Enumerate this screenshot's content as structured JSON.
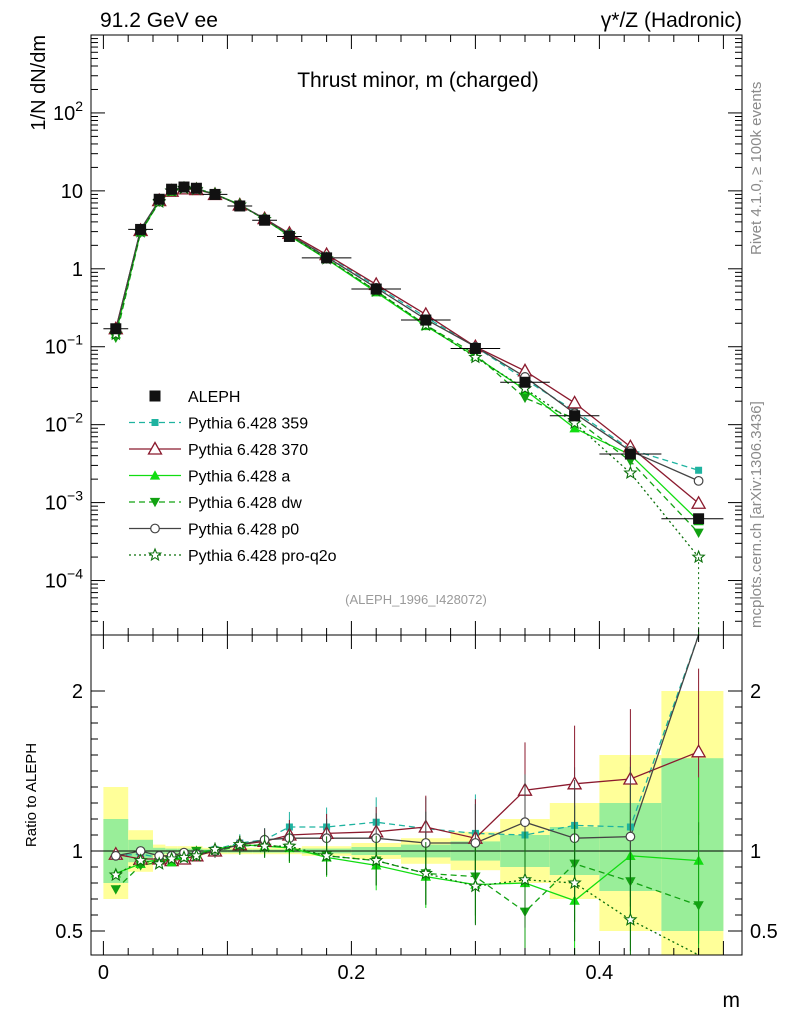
{
  "header": {
    "left": "91.2 GeV ee",
    "right": "γ*/Z (Hadronic)"
  },
  "side_notes": {
    "rivet": "Rivet 4.1.0, ≥ 100k events",
    "mcplots": "mcplots.cern.ch [arXiv:1306.3436]"
  },
  "chart_data": [
    {
      "type": "line",
      "scale": "log",
      "title": "Thrust minor, m (charged)",
      "ylabel": "1/N  dN/dm",
      "ylim": [
        2e-05,
        1000
      ],
      "xlim": [
        -0.01,
        0.515
      ],
      "y_ticks": [
        {
          "value": 0.0001,
          "mantissa": "10",
          "exp": "−4"
        },
        {
          "value": 0.001,
          "mantissa": "10",
          "exp": "−3"
        },
        {
          "value": 0.01,
          "mantissa": "10",
          "exp": "−2"
        },
        {
          "value": 0.1,
          "mantissa": "10",
          "exp": "−1"
        },
        {
          "value": 1,
          "label": "1"
        },
        {
          "value": 10,
          "label": "10"
        },
        {
          "value": 100,
          "mantissa": "10",
          "exp": "2"
        }
      ],
      "watermark": "(ALEPH_1996_I428072)",
      "x": [
        0.01,
        0.03,
        0.045,
        0.055,
        0.065,
        0.075,
        0.09,
        0.11,
        0.13,
        0.15,
        0.18,
        0.22,
        0.26,
        0.3,
        0.34,
        0.38,
        0.425,
        0.48
      ],
      "bins": [
        [
          0.0,
          0.02
        ],
        [
          0.02,
          0.04
        ],
        [
          0.04,
          0.05
        ],
        [
          0.05,
          0.06
        ],
        [
          0.06,
          0.07
        ],
        [
          0.07,
          0.08
        ],
        [
          0.08,
          0.1
        ],
        [
          0.1,
          0.12
        ],
        [
          0.12,
          0.14
        ],
        [
          0.14,
          0.16
        ],
        [
          0.16,
          0.2
        ],
        [
          0.2,
          0.24
        ],
        [
          0.24,
          0.28
        ],
        [
          0.28,
          0.32
        ],
        [
          0.32,
          0.36
        ],
        [
          0.36,
          0.4
        ],
        [
          0.4,
          0.45
        ],
        [
          0.45,
          0.5
        ]
      ],
      "data": {
        "name": "ALEPH",
        "values": [
          0.17,
          3.2,
          7.8,
          10.5,
          11.2,
          10.8,
          9.0,
          6.4,
          4.2,
          2.6,
          1.38,
          0.55,
          0.22,
          0.095,
          0.035,
          0.013,
          0.0042,
          0.00062
        ]
      },
      "series": [
        {
          "name": "Pythia 6.428 359",
          "color": "#1fb3a0",
          "dash": "6,4",
          "marker": "square",
          "values": [
            0.165,
            3.1,
            7.6,
            10.3,
            11.0,
            10.7,
            9.1,
            6.6,
            4.4,
            2.85,
            1.5,
            0.6,
            0.24,
            0.1,
            0.038,
            0.015,
            0.0048,
            0.0026
          ]
        },
        {
          "name": "Pythia 6.428 370",
          "color": "#8b1a2e",
          "dash": "",
          "marker": "triangle-open",
          "values": [
            0.17,
            3.1,
            7.5,
            9.9,
            10.6,
            10.4,
            9.0,
            6.6,
            4.4,
            2.85,
            1.52,
            0.63,
            0.26,
            0.1,
            0.049,
            0.019,
            0.0052,
            0.00098
          ]
        },
        {
          "name": "Pythia 6.428 a",
          "color": "#11dd11",
          "dash": "",
          "marker": "triangle",
          "values": [
            0.145,
            2.95,
            7.3,
            9.8,
            10.9,
            10.6,
            9.1,
            6.7,
            4.3,
            2.65,
            1.33,
            0.5,
            0.185,
            0.075,
            0.028,
            0.009,
            0.0041,
            0.00058
          ]
        },
        {
          "name": "Pythia 6.428 dw",
          "color": "#12a212",
          "dash": "6,4",
          "marker": "triangle-down",
          "values": [
            0.13,
            2.9,
            7.2,
            10.1,
            11.0,
            10.8,
            9.0,
            6.6,
            4.3,
            2.65,
            1.35,
            0.52,
            0.19,
            0.08,
            0.022,
            0.012,
            0.0034,
            0.00041
          ]
        },
        {
          "name": "Pythia 6.428 p0",
          "color": "#444444",
          "dash": "",
          "marker": "circle-open",
          "values": [
            0.165,
            3.2,
            7.6,
            10.2,
            11.1,
            10.6,
            9.0,
            6.6,
            4.4,
            2.75,
            1.42,
            0.57,
            0.225,
            0.1,
            0.041,
            0.014,
            0.0046,
            0.0019
          ]
        },
        {
          "name": "Pythia 6.428 pro-q2o",
          "color": "#0b6f0b",
          "dash": "2,3",
          "marker": "star-open",
          "values": [
            0.145,
            3.0,
            7.2,
            10.0,
            10.8,
            10.5,
            9.1,
            6.6,
            4.3,
            2.7,
            1.35,
            0.52,
            0.19,
            0.073,
            0.029,
            0.0105,
            0.0024,
            0.0002
          ]
        }
      ]
    },
    {
      "type": "line",
      "title": "",
      "ylabel": "Ratio to ALEPH",
      "xlabel": "m",
      "ylim": [
        0.35,
        2.35
      ],
      "xlim": [
        -0.01,
        0.515
      ],
      "x_ticks": [
        "0",
        "0.2",
        "0.4"
      ],
      "x_tick_values": [
        0,
        0.2,
        0.4
      ],
      "y_ticks": [
        "0.5",
        "1",
        "2"
      ],
      "y_tick_values": [
        0.5,
        1,
        2
      ],
      "band_2sigma": [
        [
          0.7,
          1.4
        ],
        [
          0.87,
          1.13
        ],
        [
          0.96,
          1.04
        ],
        [
          0.97,
          1.03
        ],
        [
          0.97,
          1.03
        ],
        [
          0.97,
          1.03
        ],
        [
          0.98,
          1.02
        ],
        [
          0.98,
          1.02
        ],
        [
          0.98,
          1.02
        ],
        [
          0.98,
          1.02
        ],
        [
          0.97,
          1.03
        ],
        [
          0.95,
          1.05
        ],
        [
          0.92,
          1.08
        ],
        [
          0.88,
          1.12
        ],
        [
          0.8,
          1.2
        ],
        [
          0.7,
          1.3
        ],
        [
          0.5,
          1.6
        ],
        [
          0.35,
          2.0
        ]
      ],
      "band_1sigma": [
        [
          0.8,
          1.2
        ],
        [
          0.93,
          1.07
        ],
        [
          0.98,
          1.02
        ],
        [
          0.985,
          1.015
        ],
        [
          0.985,
          1.015
        ],
        [
          0.985,
          1.015
        ],
        [
          0.99,
          1.01
        ],
        [
          0.99,
          1.01
        ],
        [
          0.99,
          1.01
        ],
        [
          0.99,
          1.01
        ],
        [
          0.985,
          1.015
        ],
        [
          0.975,
          1.025
        ],
        [
          0.96,
          1.04
        ],
        [
          0.94,
          1.06
        ],
        [
          0.9,
          1.1
        ],
        [
          0.85,
          1.15
        ],
        [
          0.75,
          1.3
        ],
        [
          0.5,
          1.58
        ]
      ],
      "ratio_series": [
        {
          "name": "Pythia 6.428 359",
          "values": [
            0.97,
            0.98,
            0.96,
            0.94,
            0.97,
            0.99,
            1.01,
            1.05,
            1.07,
            1.15,
            1.15,
            1.18,
            1.14,
            1.11,
            1.1,
            1.16,
            1.15,
            2.4
          ]
        },
        {
          "name": "Pythia 6.428 370",
          "values": [
            0.98,
            0.95,
            0.95,
            0.94,
            0.95,
            0.97,
            1.0,
            1.04,
            1.06,
            1.1,
            1.11,
            1.12,
            1.15,
            1.08,
            1.38,
            1.42,
            1.45,
            1.62
          ]
        },
        {
          "name": "Pythia 6.428 a",
          "values": [
            0.86,
            0.92,
            0.95,
            0.93,
            0.97,
            0.98,
            1.01,
            1.04,
            1.03,
            1.02,
            0.96,
            0.91,
            0.84,
            0.79,
            0.8,
            0.69,
            0.97,
            0.94
          ]
        },
        {
          "name": "Pythia 6.428 dw",
          "values": [
            0.76,
            0.91,
            0.93,
            0.96,
            0.98,
            1.0,
            1.0,
            1.03,
            1.04,
            1.02,
            0.97,
            0.94,
            0.86,
            0.84,
            0.62,
            0.92,
            0.81,
            0.66
          ]
        },
        {
          "name": "Pythia 6.428 p0",
          "values": [
            0.97,
            1.0,
            0.97,
            0.97,
            0.99,
            0.98,
            1.0,
            1.04,
            1.07,
            1.08,
            1.08,
            1.08,
            1.05,
            1.05,
            1.18,
            1.08,
            1.09,
            2.4
          ]
        },
        {
          "name": "Pythia 6.428 pro-q2o",
          "values": [
            0.85,
            0.94,
            0.92,
            0.95,
            0.96,
            0.97,
            1.01,
            1.04,
            1.03,
            1.03,
            0.97,
            0.94,
            0.86,
            0.78,
            0.82,
            0.8,
            0.57,
            0.3
          ]
        }
      ]
    }
  ]
}
